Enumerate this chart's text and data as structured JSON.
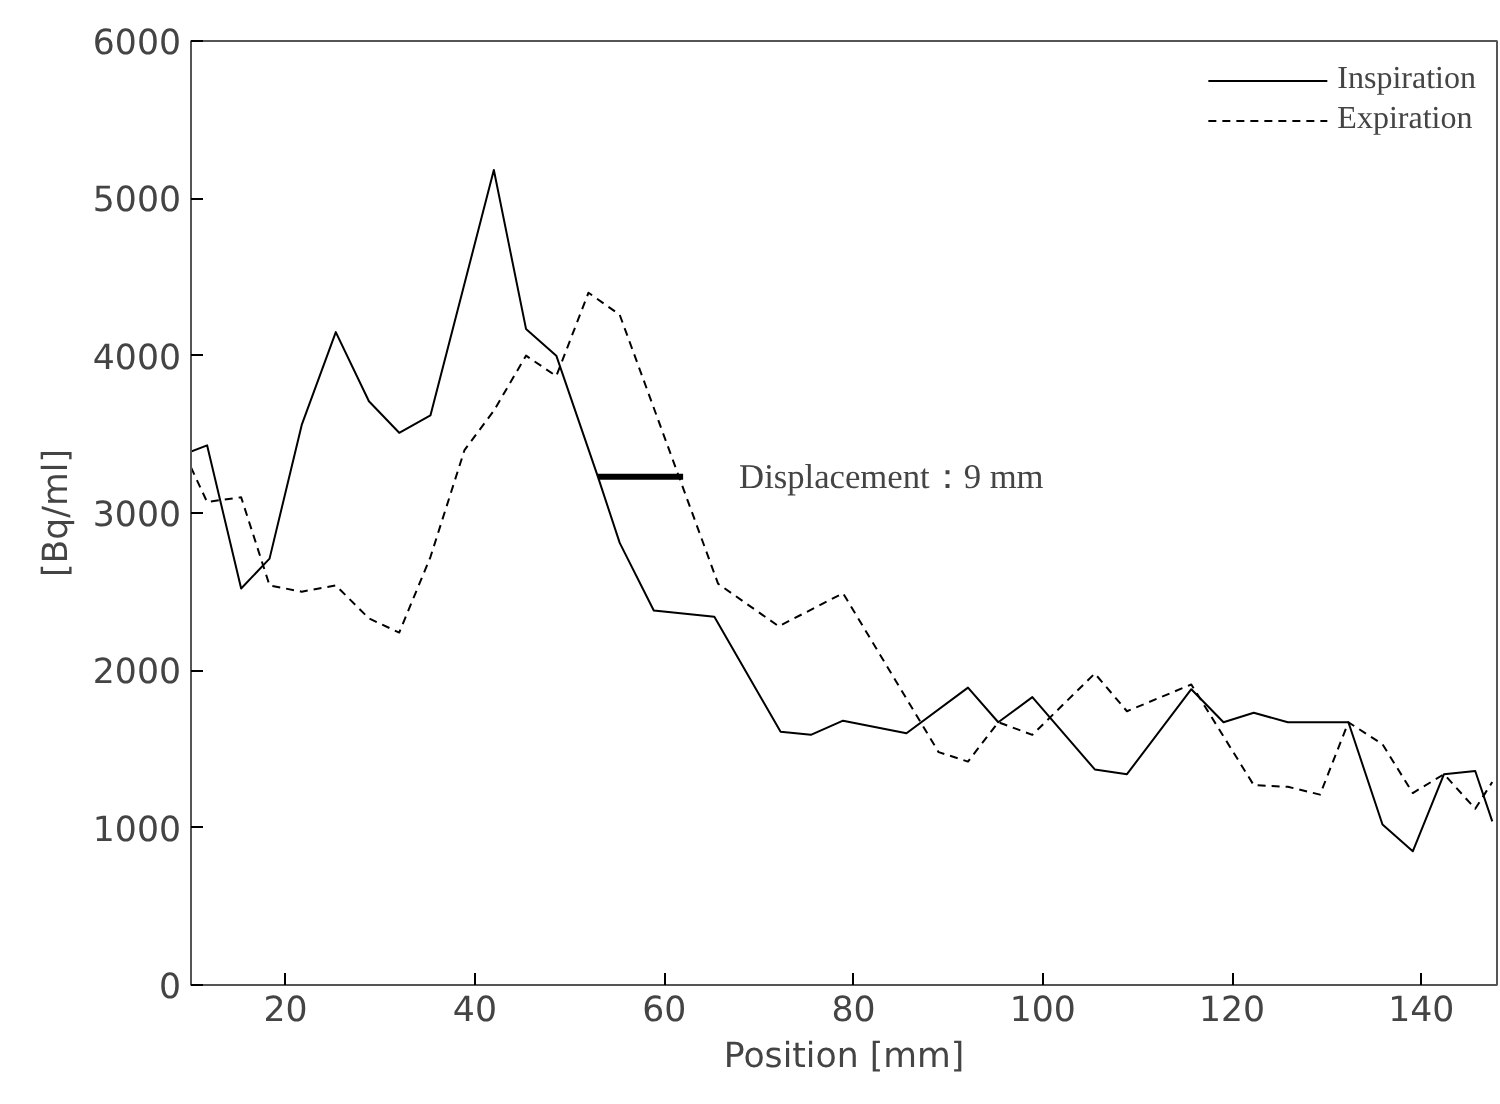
{
  "chart_data": {
    "type": "line",
    "xlabel": "Position [mm]",
    "ylabel": "[Bq/ml]",
    "xlim": [
      10,
      148
    ],
    "xticks": [
      20,
      40,
      60,
      80,
      100,
      120,
      140
    ],
    "ylim": [
      0,
      6000
    ],
    "yticks": [
      0,
      1000,
      2000,
      3000,
      4000,
      5000,
      6000
    ],
    "grid": false,
    "legend": "top right",
    "marker": "none",
    "series": [
      {
        "name": "Inspiration",
        "color": "#000000",
        "line_style": "solid",
        "x": [
          10,
          11.7,
          15.3,
          18.3,
          21.7,
          25.3,
          28.8,
          32,
          35.3,
          42,
          45.4,
          48.6,
          53,
          55.3,
          58.9,
          65.3,
          72.3,
          75.5,
          78.9,
          85.6,
          92.1,
          95.3,
          98.9,
          105.5,
          108.9,
          115.7,
          119.1,
          122.3,
          125.9,
          132.3,
          135.9,
          139.1,
          142.4,
          145.7,
          147.5
        ],
        "values": [
          3390,
          3430,
          2520,
          2710,
          3560,
          4150,
          3710,
          3510,
          3620,
          5180,
          4170,
          4000,
          3230,
          2810,
          2380,
          2340,
          1610,
          1590,
          1680,
          1600,
          1890,
          1670,
          1830,
          1370,
          1340,
          1880,
          1670,
          1730,
          1670,
          1670,
          1020,
          850,
          1340,
          1360,
          1040
        ]
      },
      {
        "name": "Expiration",
        "color": "#000000",
        "line_style": "dashed",
        "x": [
          10,
          11.7,
          15.3,
          18.3,
          21.7,
          25.3,
          28.8,
          32,
          35.3,
          38.9,
          42,
          45.4,
          48.6,
          52,
          55.3,
          65.7,
          72.1,
          78.9,
          89,
          92.1,
          95.3,
          98.9,
          105.5,
          108.9,
          115.7,
          122.3,
          125.9,
          129.3,
          132.3,
          135.9,
          139.1,
          142.4,
          145.7,
          147.5
        ],
        "values": [
          3290,
          3070,
          3100,
          2540,
          2500,
          2540,
          2330,
          2240,
          2720,
          3400,
          3650,
          4000,
          3870,
          4400,
          4260,
          2550,
          2280,
          2490,
          1480,
          1420,
          1670,
          1590,
          1980,
          1740,
          1910,
          1270,
          1260,
          1210,
          1670,
          1530,
          1220,
          1340,
          1120,
          1290
        ]
      },
      {
        "type": "line",
        "color": "#000000",
        "line_style": "solid",
        "x": [
          53,
          62
        ],
        "values": [
          3230,
          3230
        ]
      }
    ],
    "annotations": [
      "Displacement：9 mm"
    ]
  }
}
